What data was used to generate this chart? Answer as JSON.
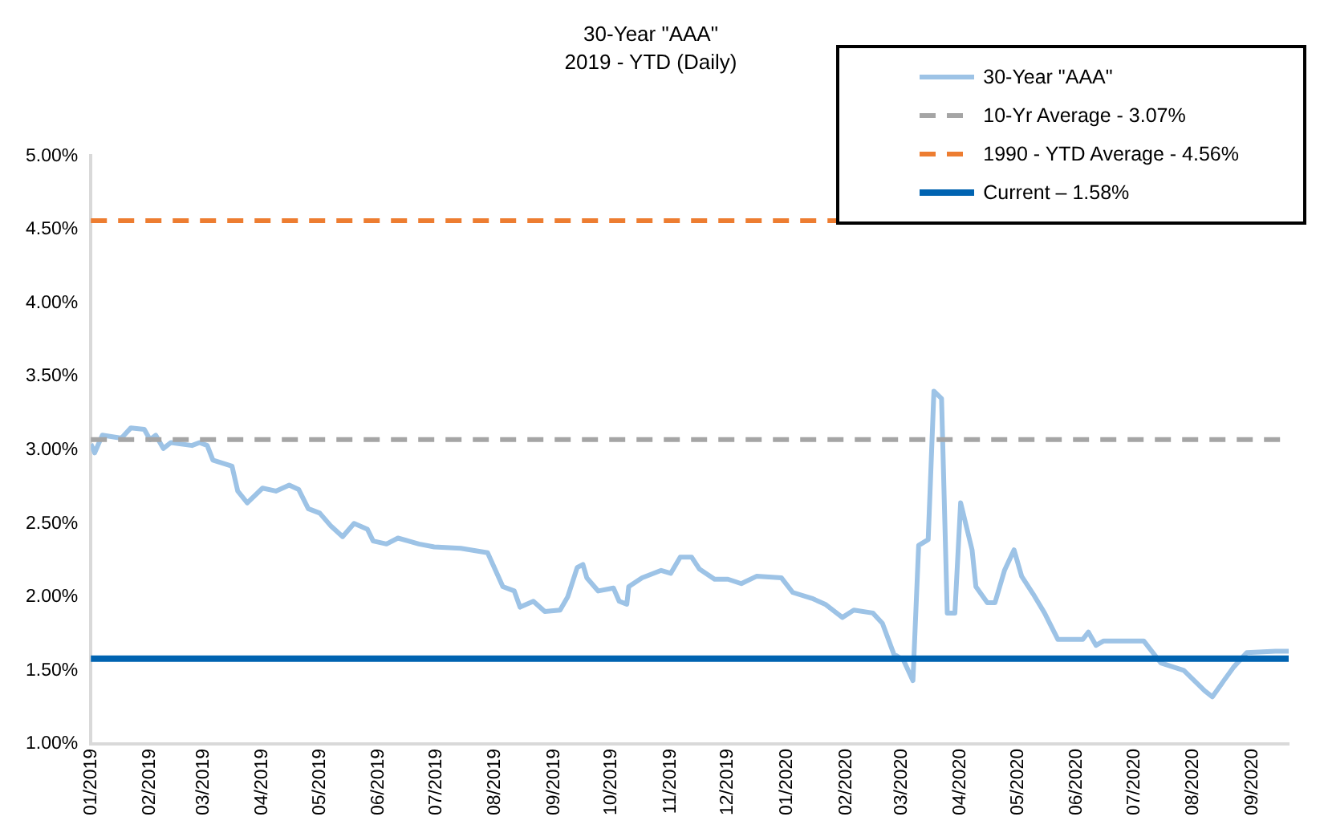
{
  "chart_data": {
    "type": "line",
    "title": "30-Year \"AAA\"",
    "subtitle": "2019 - YTD (Daily)",
    "xlim": [
      "2019-01-01",
      "2020-09-20"
    ],
    "xticks": [
      {
        "value": "2019-01-01",
        "label": "01/2019"
      },
      {
        "value": "2019-02-01",
        "label": "02/2019"
      },
      {
        "value": "2019-03-01",
        "label": "03/2019"
      },
      {
        "value": "2019-04-01",
        "label": "04/2019"
      },
      {
        "value": "2019-05-01",
        "label": "05/2019"
      },
      {
        "value": "2019-06-01",
        "label": "06/2019"
      },
      {
        "value": "2019-07-01",
        "label": "07/2019"
      },
      {
        "value": "2019-08-01",
        "label": "08/2019"
      },
      {
        "value": "2019-09-01",
        "label": "09/2019"
      },
      {
        "value": "2019-10-01",
        "label": "10/2019"
      },
      {
        "value": "2019-11-01",
        "label": "11/2019"
      },
      {
        "value": "2019-12-01",
        "label": "12/2019"
      },
      {
        "value": "2020-01-01",
        "label": "01/2020"
      },
      {
        "value": "2020-02-01",
        "label": "02/2020"
      },
      {
        "value": "2020-03-01",
        "label": "03/2020"
      },
      {
        "value": "2020-04-01",
        "label": "04/2020"
      },
      {
        "value": "2020-05-01",
        "label": "05/2020"
      },
      {
        "value": "2020-06-01",
        "label": "06/2020"
      },
      {
        "value": "2020-07-01",
        "label": "07/2020"
      },
      {
        "value": "2020-08-01",
        "label": "08/2020"
      },
      {
        "value": "2020-09-01",
        "label": "09/2020"
      }
    ],
    "ylim": [
      1,
      5
    ],
    "yticks": [
      {
        "value": 1,
        "label": "1.00%"
      },
      {
        "value": 1.5,
        "label": "1.50%"
      },
      {
        "value": 2,
        "label": "2.00%"
      },
      {
        "value": 2.5,
        "label": "2.50%"
      },
      {
        "value": 3,
        "label": "3.00%"
      },
      {
        "value": 3.5,
        "label": "3.50%"
      },
      {
        "value": 4,
        "label": "4.00%"
      },
      {
        "value": 4.5,
        "label": "4.50%"
      },
      {
        "value": 5,
        "label": "5.00%"
      }
    ],
    "grid": false,
    "legend": "top right",
    "marker": "none",
    "line_style": "solid",
    "series": [
      {
        "name": "30-Year \"AAA\"",
        "color": "#9dc3e6",
        "x": [
          "2019-01-01",
          "2019-01-03",
          "2019-01-07",
          "2019-01-17",
          "2019-01-22",
          "2019-01-29",
          "2019-02-01",
          "2019-02-04",
          "2019-02-08",
          "2019-02-12",
          "2019-02-23",
          "2019-02-27",
          "2019-03-03",
          "2019-03-06",
          "2019-03-16",
          "2019-03-19",
          "2019-03-24",
          "2019-04-01",
          "2019-04-08",
          "2019-04-15",
          "2019-04-20",
          "2019-04-25",
          "2019-05-01",
          "2019-05-07",
          "2019-05-13",
          "2019-05-19",
          "2019-05-26",
          "2019-05-29",
          "2019-06-05",
          "2019-06-11",
          "2019-06-22",
          "2019-06-30",
          "2019-07-14",
          "2019-07-28",
          "2019-08-05",
          "2019-08-11",
          "2019-08-14",
          "2019-08-21",
          "2019-08-27",
          "2019-09-04",
          "2019-09-08",
          "2019-09-13",
          "2019-09-16",
          "2019-09-18",
          "2019-09-24",
          "2019-10-02",
          "2019-10-05",
          "2019-10-09",
          "2019-10-10",
          "2019-10-17",
          "2019-10-27",
          "2019-11-01",
          "2019-11-06",
          "2019-11-12",
          "2019-11-16",
          "2019-11-24",
          "2019-12-01",
          "2019-12-08",
          "2019-12-16",
          "2019-12-29",
          "2020-01-04",
          "2020-01-14",
          "2020-01-21",
          "2020-01-30",
          "2020-02-05",
          "2020-02-15",
          "2020-02-20",
          "2020-02-26",
          "2020-03-02",
          "2020-03-07",
          "2020-03-10",
          "2020-03-15",
          "2020-03-18",
          "2020-03-22",
          "2020-03-25",
          "2020-03-29",
          "2020-04-01",
          "2020-04-07",
          "2020-04-09",
          "2020-04-15",
          "2020-04-19",
          "2020-04-24",
          "2020-04-29",
          "2020-05-03",
          "2020-05-09",
          "2020-05-15",
          "2020-05-22",
          "2020-06-04",
          "2020-06-07",
          "2020-06-11",
          "2020-06-15",
          "2020-07-06",
          "2020-07-15",
          "2020-07-27",
          "2020-08-07",
          "2020-08-11",
          "2020-08-17",
          "2020-08-22",
          "2020-08-29",
          "2020-09-13",
          "2020-09-20"
        ],
        "values": [
          3.04,
          2.98,
          3.1,
          3.08,
          3.15,
          3.14,
          3.07,
          3.1,
          3.01,
          3.05,
          3.03,
          3.05,
          3.03,
          2.93,
          2.89,
          2.72,
          2.64,
          2.74,
          2.72,
          2.76,
          2.73,
          2.6,
          2.57,
          2.48,
          2.41,
          2.5,
          2.46,
          2.38,
          2.36,
          2.4,
          2.36,
          2.34,
          2.33,
          2.3,
          2.07,
          2.04,
          1.93,
          1.97,
          1.9,
          1.91,
          2.0,
          2.2,
          2.22,
          2.13,
          2.04,
          2.06,
          1.97,
          1.95,
          2.07,
          2.13,
          2.18,
          2.16,
          2.27,
          2.27,
          2.19,
          2.12,
          2.12,
          2.09,
          2.14,
          2.13,
          2.03,
          1.99,
          1.95,
          1.86,
          1.91,
          1.89,
          1.82,
          1.61,
          1.57,
          1.43,
          2.35,
          2.39,
          3.4,
          3.35,
          1.89,
          1.89,
          2.64,
          2.32,
          2.07,
          1.96,
          1.96,
          2.18,
          2.32,
          2.14,
          2.02,
          1.89,
          1.71,
          1.71,
          1.76,
          1.67,
          1.7,
          1.7,
          1.55,
          1.5,
          1.36,
          1.32,
          1.43,
          1.52,
          1.62,
          1.63,
          1.63
        ]
      }
    ],
    "ref_lines": [
      {
        "axis": "y",
        "value": 3.07,
        "label": "10-Yr Average - 3.07%",
        "color": "#a5a5a5",
        "line_style": "dashed"
      },
      {
        "axis": "y",
        "value": 4.56,
        "label": "1990 - YTD Average - 4.56%",
        "color": "#ed7d31",
        "line_style": "dashed"
      },
      {
        "axis": "y",
        "value": 1.58,
        "label": "Current – 1.58%",
        "color": "#0063b1",
        "line_style": "solid"
      }
    ]
  }
}
